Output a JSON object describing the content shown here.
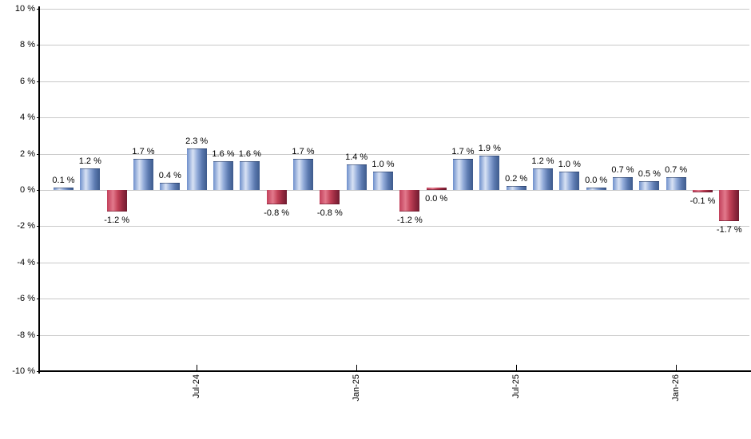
{
  "chart_data": {
    "type": "bar",
    "title": "",
    "xlabel": "",
    "ylabel": "",
    "unit": "%",
    "ylim": [
      -10,
      10
    ],
    "y_tick_step": 2,
    "grid": true,
    "legend": null,
    "y_tick_labels": [
      "10 %",
      "8 %",
      "6 %",
      "4 %",
      "2 %",
      "0 %",
      "-2 %",
      "-4 %",
      "-6 %",
      "-8 %",
      "-10 %"
    ],
    "x_ticks": [
      {
        "bar_index": 5,
        "label": "Jul-24"
      },
      {
        "bar_index": 11,
        "label": "Jan-25"
      },
      {
        "bar_index": 17,
        "label": "Jul-25"
      },
      {
        "bar_index": 23,
        "label": "Jan-26"
      }
    ],
    "bars": [
      {
        "label": "0.1 %",
        "value": 0.1,
        "color": "positive"
      },
      {
        "label": "1.2 %",
        "value": 1.2,
        "color": "positive"
      },
      {
        "label": "-1.2 %",
        "value": -1.2,
        "color": "negative"
      },
      {
        "label": "1.7 %",
        "value": 1.7,
        "color": "positive"
      },
      {
        "label": "0.4 %",
        "value": 0.4,
        "color": "positive"
      },
      {
        "label": "2.3 %",
        "value": 2.3,
        "color": "positive"
      },
      {
        "label": "1.6 %",
        "value": 1.6,
        "color": "positive"
      },
      {
        "label": "1.6 %",
        "value": 1.6,
        "color": "positive"
      },
      {
        "label": "-0.8 %",
        "value": -0.8,
        "color": "negative"
      },
      {
        "label": "1.7 %",
        "value": 1.7,
        "color": "positive"
      },
      {
        "label": "-0.8 %",
        "value": -0.8,
        "color": "negative"
      },
      {
        "label": "1.4 %",
        "value": 1.4,
        "color": "positive"
      },
      {
        "label": "1.0 %",
        "value": 1.0,
        "color": "positive"
      },
      {
        "label": "-1.2 %",
        "value": -1.2,
        "color": "negative"
      },
      {
        "label": "0.0 %",
        "value": 0.0,
        "color": "negative",
        "bar_side": "above",
        "label_side": "below"
      },
      {
        "label": "1.7 %",
        "value": 1.7,
        "color": "positive"
      },
      {
        "label": "1.9 %",
        "value": 1.9,
        "color": "positive"
      },
      {
        "label": "0.2 %",
        "value": 0.2,
        "color": "positive"
      },
      {
        "label": "1.2 %",
        "value": 1.2,
        "color": "positive"
      },
      {
        "label": "1.0 %",
        "value": 1.0,
        "color": "positive"
      },
      {
        "label": "0.0 %",
        "value": 0.0,
        "color": "positive"
      },
      {
        "label": "0.7 %",
        "value": 0.7,
        "color": "positive"
      },
      {
        "label": "0.5 %",
        "value": 0.5,
        "color": "positive"
      },
      {
        "label": "0.7 %",
        "value": 0.7,
        "color": "positive"
      },
      {
        "label": "-0.1 %",
        "value": -0.1,
        "color": "negative"
      },
      {
        "label": "-1.7 %",
        "value": -1.7,
        "color": "negative"
      }
    ],
    "colors": {
      "positive_gradient": [
        "#6e8fcb",
        "#d8e2f4",
        "#92abd9",
        "#5c7ab0",
        "#3d5a8c"
      ],
      "negative_gradient": [
        "#c2405b",
        "#e2798c",
        "#c04056",
        "#96293f",
        "#701d31"
      ],
      "grid": "#c9c9c9",
      "axis": "#000000",
      "label_text": "#000000",
      "background": "#ffffff"
    }
  }
}
